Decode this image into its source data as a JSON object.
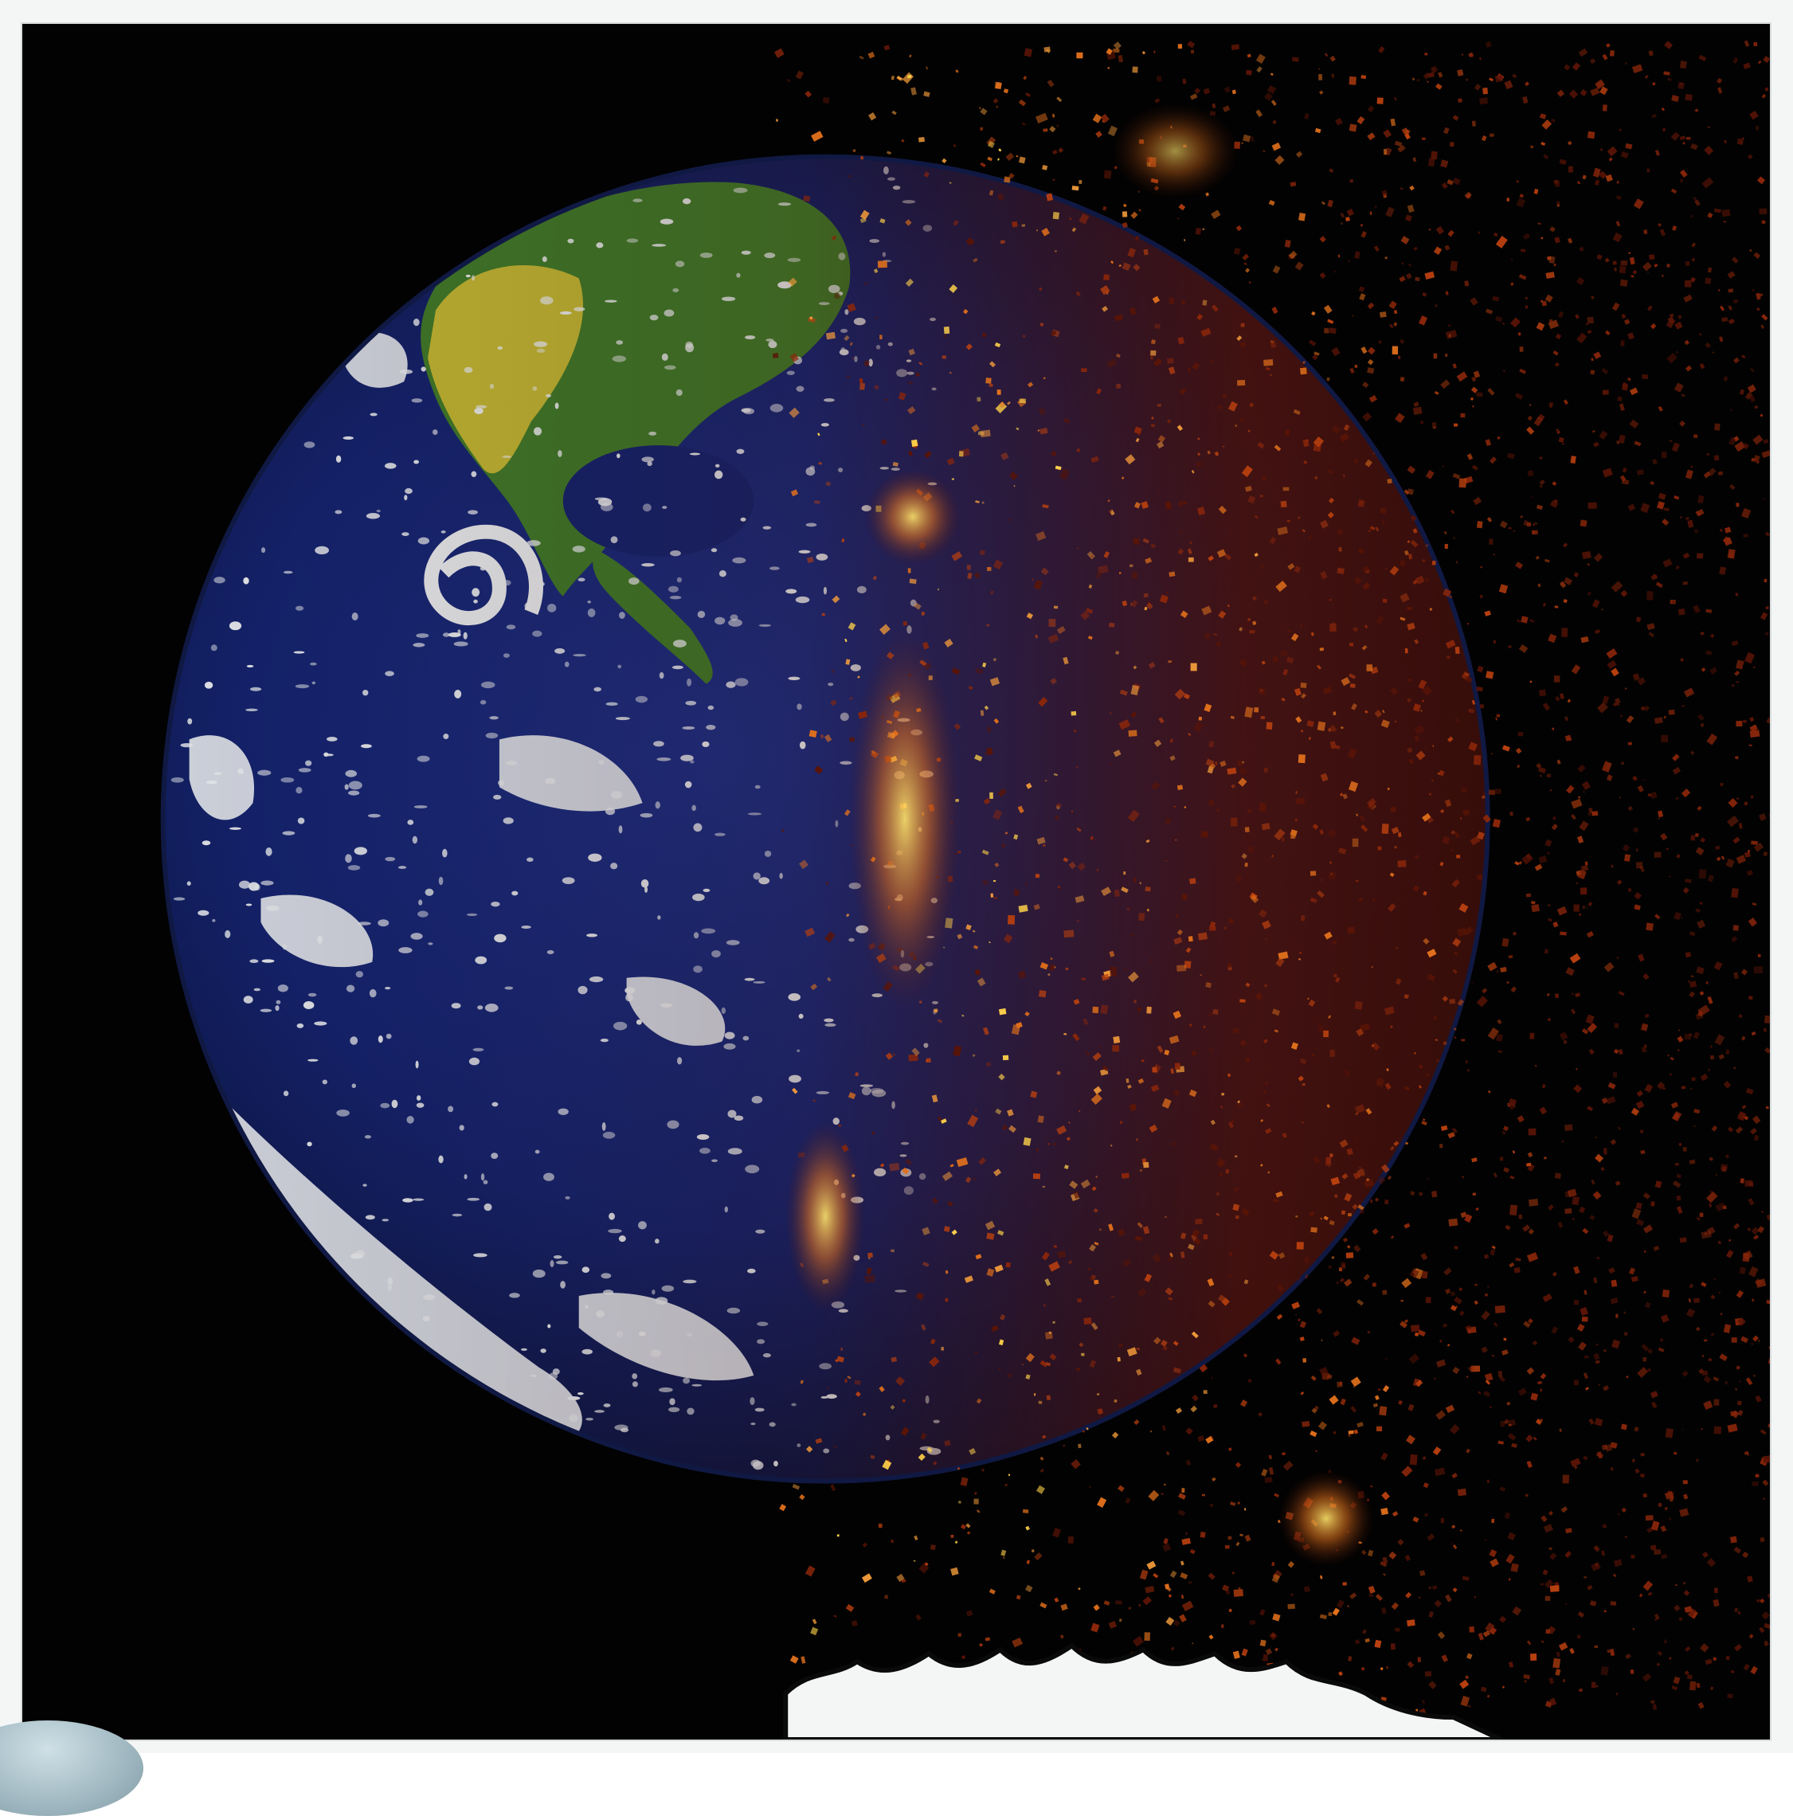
{
  "image": {
    "subject": "earth-disintegrating",
    "colors": {
      "space": "#020202",
      "ocean": "#14236e",
      "cloud": "#e9ecef",
      "land_green": "#3f7a2a",
      "land_yellow": "#d9c236",
      "ember_dark": "#5a1406",
      "ember_orange": "#e0701c",
      "ember_bright": "#ffd24a",
      "frame": "#f4f6f6"
    }
  }
}
